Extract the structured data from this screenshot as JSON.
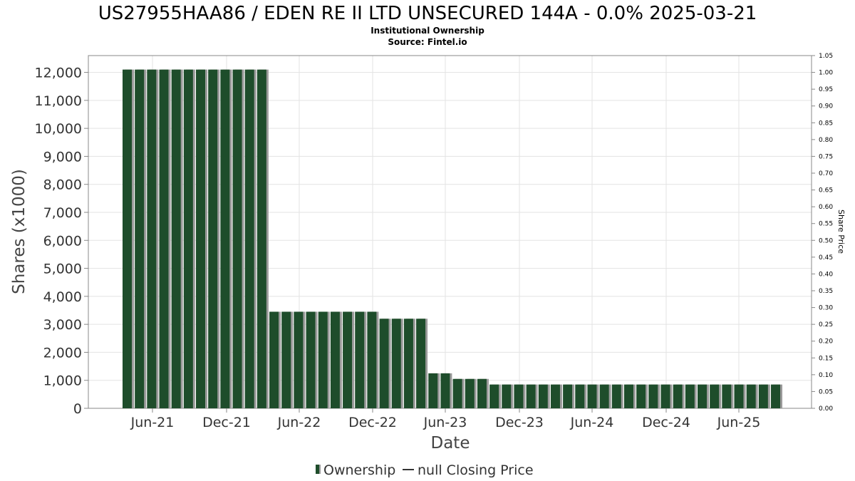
{
  "chart_data": {
    "type": "bar",
    "title": "US27955HAA86 / EDEN RE II LTD UNSECURED 144A - 0.0% 2025-03-21",
    "subtitle_lines": [
      "Institutional Ownership",
      "Source: Fintel.io"
    ],
    "xlabel": "Date",
    "ylabel": "Shares (x1000)",
    "ylabel_right": "Share Price",
    "ylim": [
      0,
      12600
    ],
    "ylim_right": [
      0,
      1.05
    ],
    "y_ticks": [
      0,
      1000,
      2000,
      3000,
      4000,
      5000,
      6000,
      7000,
      8000,
      9000,
      10000,
      11000,
      12000
    ],
    "y_tick_labels": [
      "0",
      "1,000",
      "2,000",
      "3,000",
      "4,000",
      "5,000",
      "6,000",
      "7,000",
      "8,000",
      "9,000",
      "10,000",
      "11,000",
      "12,000"
    ],
    "y_right_tick_labels": [
      "0.00",
      "0.05",
      "0.10",
      "0.15",
      "0.20",
      "0.25",
      "0.30",
      "0.35",
      "0.40",
      "0.45",
      "0.50",
      "0.55",
      "0.60",
      "0.65",
      "0.70",
      "0.75",
      "0.80",
      "0.85",
      "0.90",
      "0.95",
      "1.00",
      "1.05"
    ],
    "x_tick_labels": [
      "Jun-21",
      "Dec-21",
      "Jun-22",
      "Dec-22",
      "Jun-23",
      "Dec-23",
      "Jun-24",
      "Dec-24",
      "Jun-25"
    ],
    "grid": true,
    "legend_position": "bottom-center",
    "series": [
      {
        "name": "Ownership",
        "color": "#1e4d2b",
        "values": [
          12100,
          12100,
          12100,
          12100,
          12100,
          12100,
          12100,
          12100,
          12100,
          12100,
          12100,
          12100,
          3450,
          3450,
          3450,
          3450,
          3450,
          3450,
          3450,
          3450,
          3450,
          3200,
          3200,
          3200,
          3200,
          1250,
          1250,
          1050,
          1050,
          1050,
          850,
          850,
          850,
          850,
          850,
          850,
          850,
          850,
          850,
          850,
          850,
          850,
          850,
          850,
          850,
          850,
          850,
          850,
          850,
          850,
          850,
          850,
          850,
          850
        ]
      }
    ],
    "legend": [
      {
        "label": "Ownership",
        "marker": "bar",
        "color": "#1e4d2b"
      },
      {
        "label": "null Closing Price",
        "marker": "line",
        "color": "#333333"
      }
    ]
  }
}
